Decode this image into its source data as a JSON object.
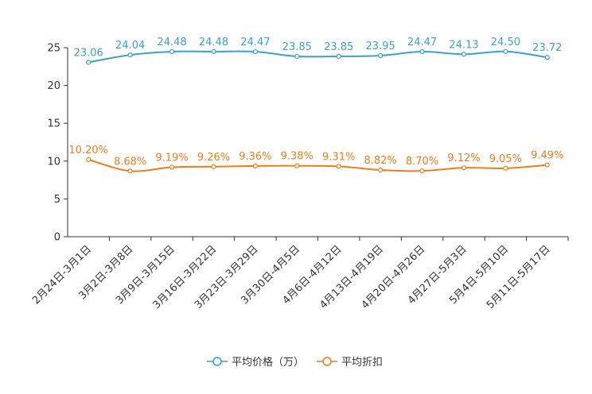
{
  "chart_data": {
    "type": "line",
    "categories": [
      "2月24日-3月1日",
      "3月2日-3月8日",
      "3月9日-3月15日",
      "3月16日-3月22日",
      "3月23日-3月29日",
      "3月30日-4月5日",
      "4月6日-4月12日",
      "4月13日-4月19日",
      "4月20日-4月26日",
      "4月27日-5月3日",
      "5月4日-5月10日",
      "5月11日-5月17日"
    ],
    "ylim": [
      0,
      25
    ],
    "yticks": [
      0,
      5,
      10,
      15,
      20,
      25
    ],
    "series": [
      {
        "name": "平均价格（万）",
        "color": "#3b9fd2",
        "values": [
          23.06,
          24.04,
          24.48,
          24.48,
          24.47,
          23.85,
          23.85,
          23.95,
          24.47,
          24.13,
          24.5,
          23.72
        ],
        "labels": [
          "23.06",
          "24.04",
          "24.48",
          "24.48",
          "24.47",
          "23.85",
          "23.85",
          "23.95",
          "24.47",
          "24.13",
          "24.50",
          "23.72"
        ]
      },
      {
        "name": "平均折扣",
        "color": "#f07d1a",
        "values": [
          10.2,
          8.68,
          9.19,
          9.26,
          9.36,
          9.38,
          9.31,
          8.82,
          8.7,
          9.12,
          9.05,
          9.49
        ],
        "labels": [
          "10.20%",
          "8.68%",
          "9.19%",
          "9.26%",
          "9.36%",
          "9.38%",
          "9.31%",
          "8.82%",
          "8.70%",
          "9.12%",
          "9.05%",
          "9.49%"
        ]
      }
    ],
    "legend": "bottom-center"
  }
}
